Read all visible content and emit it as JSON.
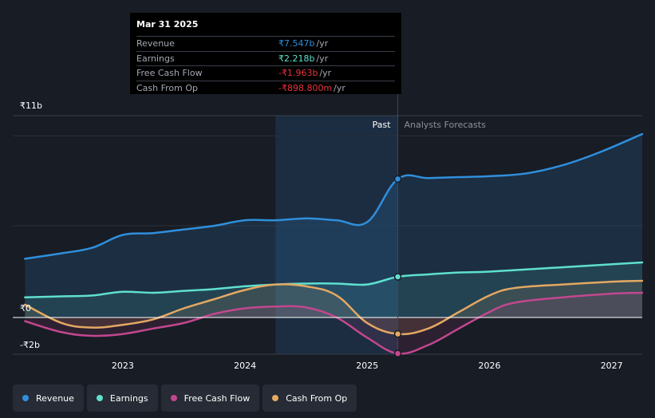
{
  "chart_data": {
    "type": "line",
    "y_unit": "₹b",
    "ylim": [
      -2,
      11
    ],
    "y_tick_labels": [
      "₹11b",
      "₹0",
      "-₹2b"
    ],
    "y_ticks": [
      11,
      0,
      -2
    ],
    "x_tick_labels": [
      "2023",
      "2024",
      "2025",
      "2026",
      "2027"
    ],
    "x_ticks": [
      2023,
      2024,
      2025,
      2026,
      2027
    ],
    "xlim": [
      2022.1,
      2027.25
    ],
    "past_start": 2024.25,
    "divider": 2025.25,
    "past_label": "Past",
    "forecast_label": "Analysts Forecasts",
    "series": [
      {
        "name": "Revenue",
        "color": "#2f8fdc",
        "fill": true,
        "marker": true,
        "points": [
          [
            2022.2,
            3.2
          ],
          [
            2022.5,
            3.5
          ],
          [
            2022.75,
            3.8
          ],
          [
            2023.0,
            4.5
          ],
          [
            2023.25,
            4.6
          ],
          [
            2023.5,
            4.8
          ],
          [
            2023.75,
            5.0
          ],
          [
            2024.0,
            5.3
          ],
          [
            2024.25,
            5.3
          ],
          [
            2024.5,
            5.4
          ],
          [
            2024.75,
            5.3
          ],
          [
            2025.0,
            5.2
          ],
          [
            2025.25,
            7.547
          ],
          [
            2025.5,
            7.6
          ],
          [
            2025.75,
            7.65
          ],
          [
            2026.0,
            7.7
          ],
          [
            2026.3,
            7.85
          ],
          [
            2026.6,
            8.3
          ],
          [
            2026.9,
            9.0
          ],
          [
            2027.25,
            10.0
          ]
        ]
      },
      {
        "name": "Earnings",
        "color": "#5ee0cf",
        "fill": true,
        "marker": true,
        "points": [
          [
            2022.2,
            1.1
          ],
          [
            2022.5,
            1.15
          ],
          [
            2022.75,
            1.2
          ],
          [
            2023.0,
            1.4
          ],
          [
            2023.25,
            1.35
          ],
          [
            2023.5,
            1.45
          ],
          [
            2023.75,
            1.55
          ],
          [
            2024.0,
            1.7
          ],
          [
            2024.25,
            1.8
          ],
          [
            2024.5,
            1.85
          ],
          [
            2024.75,
            1.85
          ],
          [
            2025.0,
            1.8
          ],
          [
            2025.25,
            2.218
          ],
          [
            2025.5,
            2.35
          ],
          [
            2025.75,
            2.45
          ],
          [
            2026.0,
            2.5
          ],
          [
            2026.5,
            2.7
          ],
          [
            2027.0,
            2.9
          ],
          [
            2027.25,
            3.0
          ]
        ]
      },
      {
        "name": "Free Cash Flow",
        "color": "#c2478f",
        "fill": true,
        "marker": true,
        "points": [
          [
            2022.2,
            -0.2
          ],
          [
            2022.5,
            -0.8
          ],
          [
            2022.75,
            -1.0
          ],
          [
            2023.0,
            -0.9
          ],
          [
            2023.25,
            -0.6
          ],
          [
            2023.5,
            -0.3
          ],
          [
            2023.75,
            0.2
          ],
          [
            2024.0,
            0.5
          ],
          [
            2024.25,
            0.6
          ],
          [
            2024.5,
            0.55
          ],
          [
            2024.75,
            0.0
          ],
          [
            2025.0,
            -1.1
          ],
          [
            2025.25,
            -1.963
          ],
          [
            2025.5,
            -1.5
          ],
          [
            2025.75,
            -0.6
          ],
          [
            2026.0,
            0.3
          ],
          [
            2026.2,
            0.8
          ],
          [
            2026.6,
            1.1
          ],
          [
            2027.0,
            1.3
          ],
          [
            2027.25,
            1.35
          ]
        ]
      },
      {
        "name": "Cash From Op",
        "color": "#e4a862",
        "fill": true,
        "marker": true,
        "points": [
          [
            2022.2,
            0.7
          ],
          [
            2022.5,
            -0.3
          ],
          [
            2022.75,
            -0.55
          ],
          [
            2023.0,
            -0.4
          ],
          [
            2023.25,
            -0.1
          ],
          [
            2023.5,
            0.5
          ],
          [
            2023.75,
            1.0
          ],
          [
            2024.0,
            1.5
          ],
          [
            2024.25,
            1.8
          ],
          [
            2024.5,
            1.7
          ],
          [
            2024.75,
            1.2
          ],
          [
            2025.0,
            -0.3
          ],
          [
            2025.25,
            -0.899
          ],
          [
            2025.5,
            -0.6
          ],
          [
            2025.75,
            0.3
          ],
          [
            2026.0,
            1.2
          ],
          [
            2026.2,
            1.6
          ],
          [
            2026.6,
            1.8
          ],
          [
            2027.0,
            1.95
          ],
          [
            2027.25,
            2.0
          ]
        ]
      }
    ]
  },
  "tooltip": {
    "date": "Mar 31 2025",
    "rows": [
      {
        "name": "Revenue",
        "value": "₹7.547b",
        "unit": "/yr",
        "color": "#2f8fdc"
      },
      {
        "name": "Earnings",
        "value": "₹2.218b",
        "unit": "/yr",
        "color": "#5ee0cf"
      },
      {
        "name": "Free Cash Flow",
        "value": "-₹1.963b",
        "unit": "/yr",
        "color": "#e8333c"
      },
      {
        "name": "Cash From Op",
        "value": "-₹898.800m",
        "unit": "/yr",
        "color": "#e8333c"
      }
    ]
  },
  "legend": [
    {
      "label": "Revenue",
      "color": "#2f8fdc"
    },
    {
      "label": "Earnings",
      "color": "#5ee0cf"
    },
    {
      "label": "Free Cash Flow",
      "color": "#c2478f"
    },
    {
      "label": "Cash From Op",
      "color": "#e4a862"
    }
  ]
}
